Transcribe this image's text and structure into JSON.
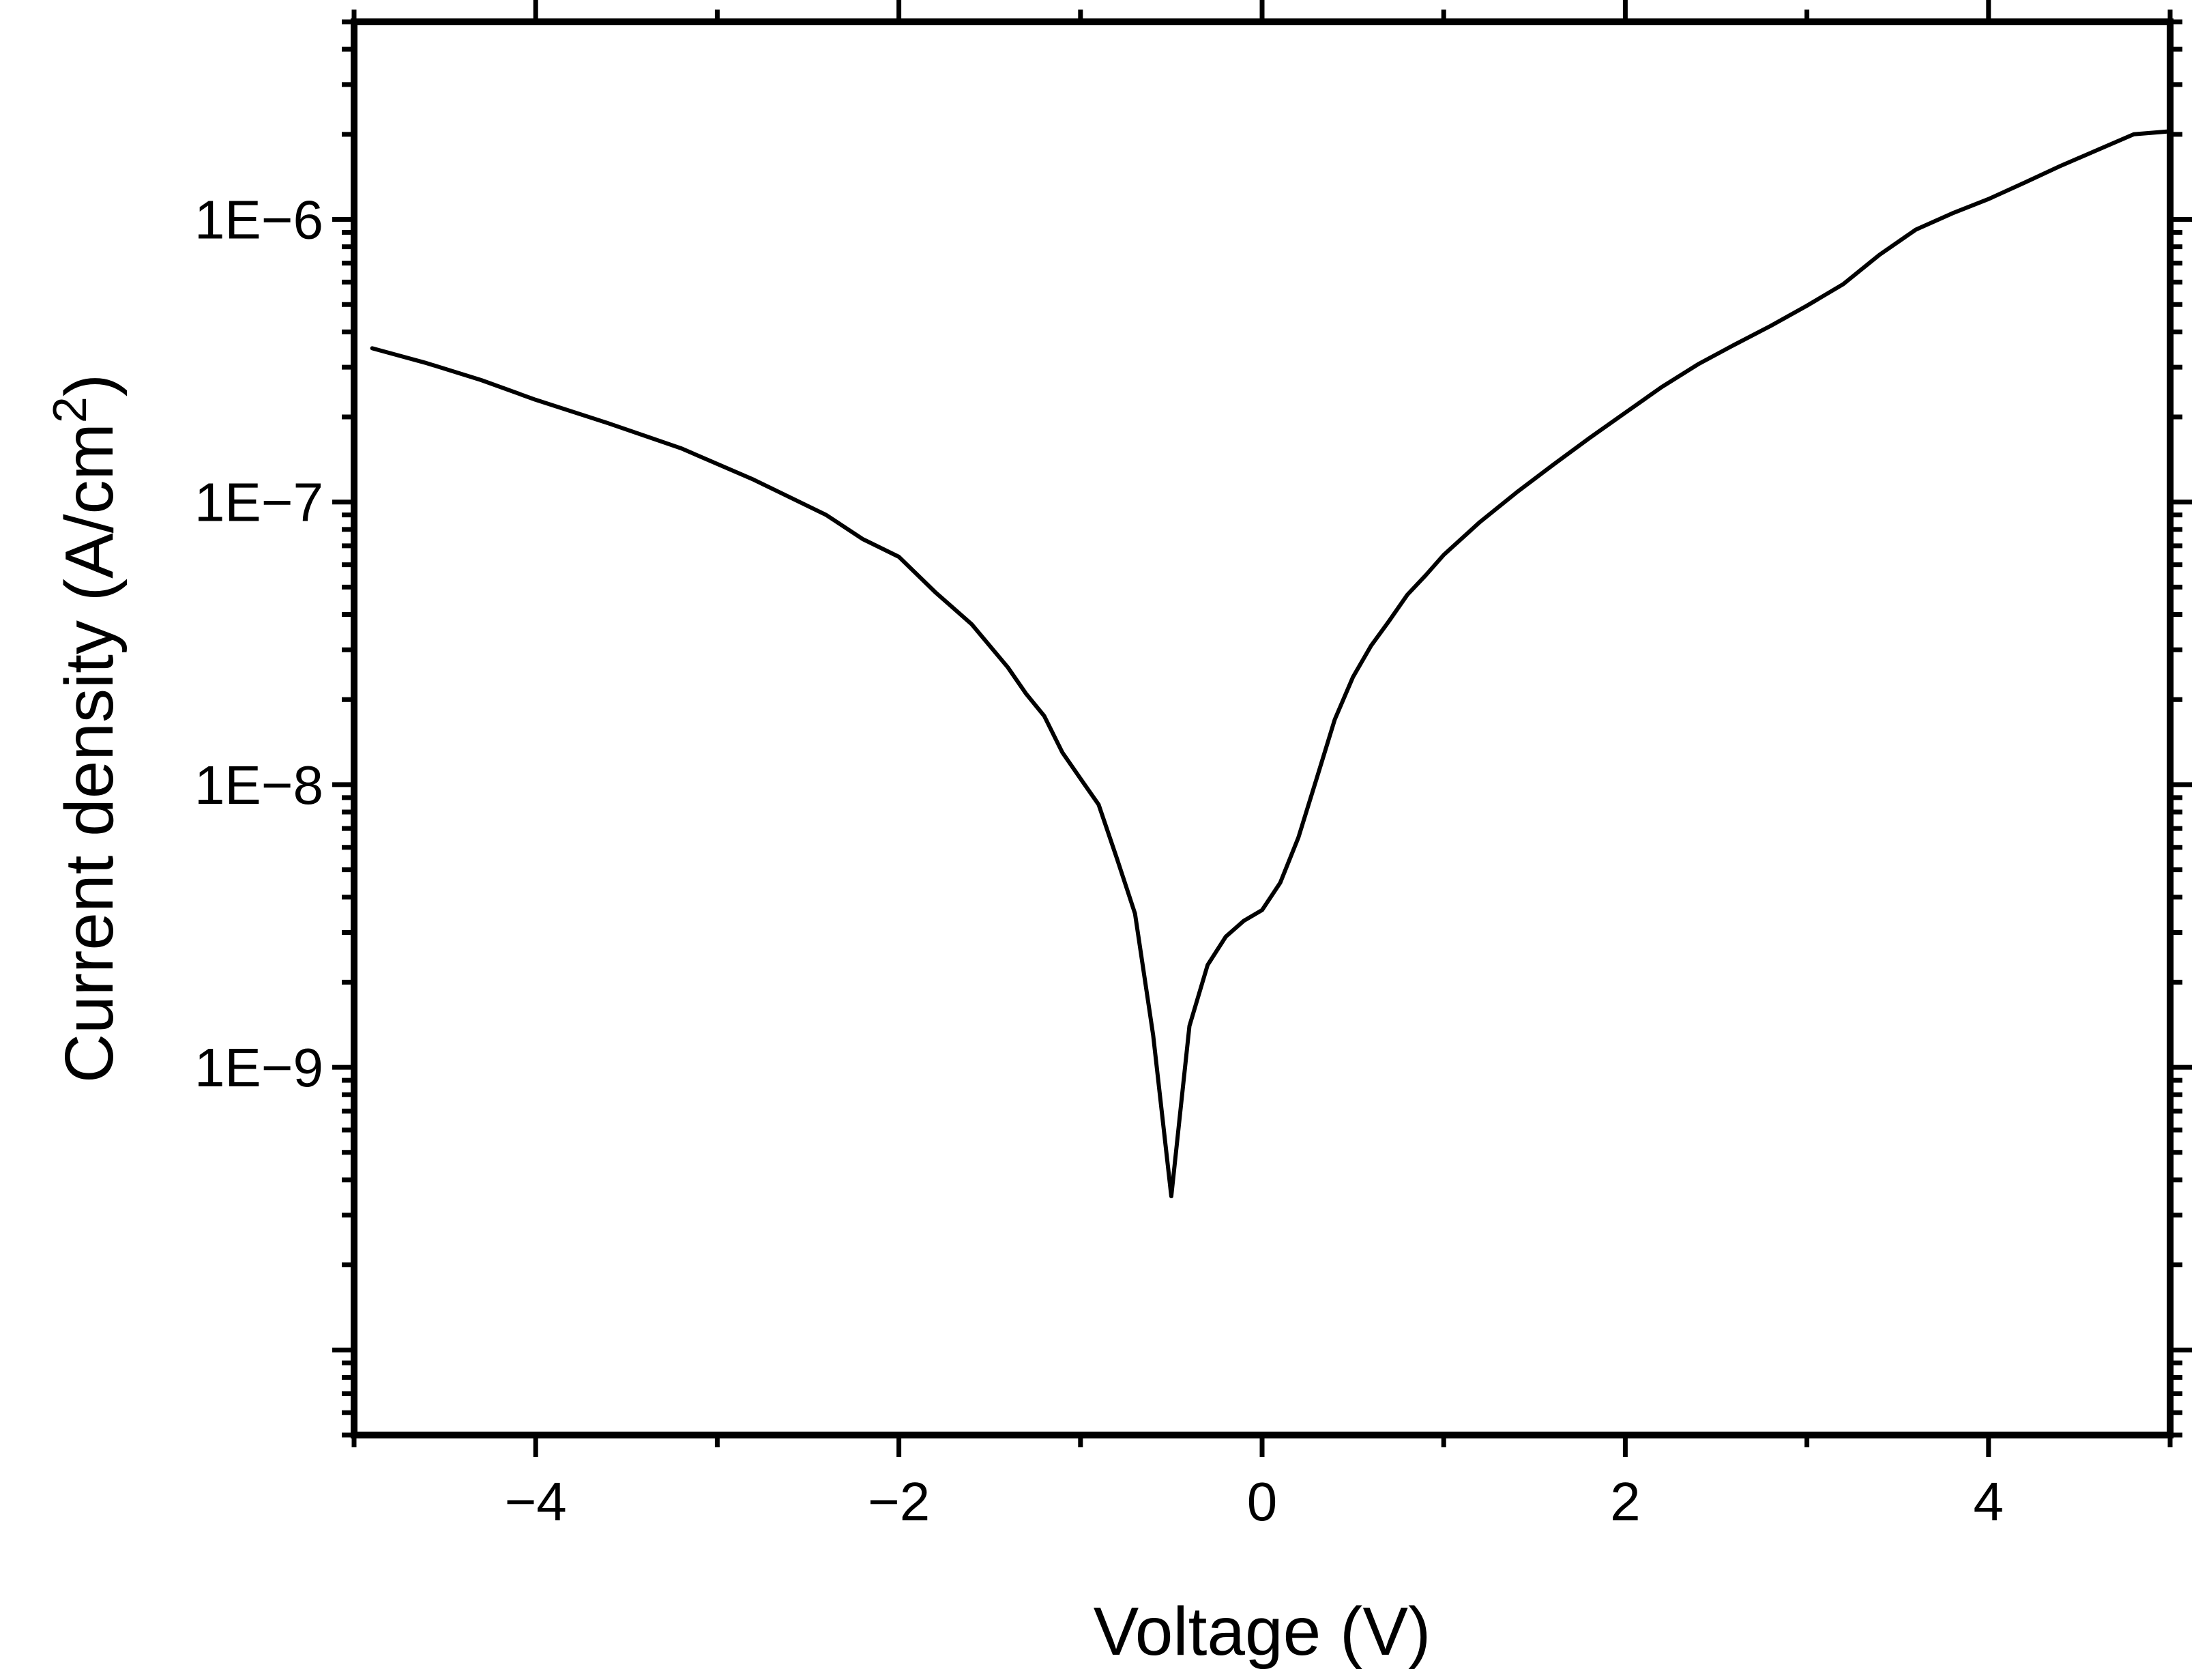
{
  "chart_data": {
    "type": "line",
    "title": "",
    "xlabel": "Voltage (V)",
    "ylabel_main": "Current density (A/cm",
    "ylabel_sup": "2",
    "ylabel_close": ")",
    "xscale": "linear",
    "yscale": "log",
    "xlim": [
      -5,
      5
    ],
    "ylim": [
      5e-11,
      5e-06
    ],
    "grid": false,
    "legend": "none",
    "colors": {
      "line": "#000000",
      "axes": "#000000",
      "background": "#ffffff"
    },
    "x_ticks": [
      {
        "value": -4,
        "label": "−4"
      },
      {
        "value": -2,
        "label": "−2"
      },
      {
        "value": 0,
        "label": "0"
      },
      {
        "value": 2,
        "label": "2"
      },
      {
        "value": 4,
        "label": "4"
      }
    ],
    "x_minor_ticks": [
      -5,
      -3,
      -1,
      1,
      3,
      5
    ],
    "y_ticks": [
      {
        "value": 1e-09,
        "label": "1E−9"
      },
      {
        "value": 1e-08,
        "label": "1E−8"
      },
      {
        "value": 1e-07,
        "label": "1E−7"
      },
      {
        "value": 1e-06,
        "label": "1E−6"
      }
    ],
    "series": [
      {
        "x": [
          -4.9,
          -4.6,
          -4.3,
          -4.0,
          -3.6,
          -3.2,
          -2.8,
          -2.4,
          -2.2,
          -2.0,
          -1.8,
          -1.6,
          -1.4,
          -1.3,
          -1.2,
          -1.1,
          -1.0,
          -0.9,
          -0.8,
          -0.7,
          -0.6,
          -0.5,
          -0.4,
          -0.3,
          -0.2,
          -0.1,
          0.0,
          0.1,
          0.2,
          0.3,
          0.4,
          0.5,
          0.6,
          0.7,
          0.8,
          0.9,
          1.0,
          1.2,
          1.4,
          1.6,
          1.8,
          2.0,
          2.2,
          2.4,
          2.6,
          2.8,
          3.0,
          3.2,
          3.4,
          3.6,
          3.8,
          4.0,
          4.2,
          4.4,
          4.6,
          4.8,
          5.0
        ],
        "y": [
          3.5e-07,
          3.1e-07,
          2.7e-07,
          2.3e-07,
          1.9e-07,
          1.55e-07,
          1.2e-07,
          9e-08,
          7.4e-08,
          6.4e-08,
          4.8e-08,
          3.7e-08,
          2.6e-08,
          2.1e-08,
          1.75e-08,
          1.3e-08,
          1.05e-08,
          8.5e-09,
          5.5e-09,
          3.5e-09,
          1.3e-09,
          3.5e-10,
          1.4e-09,
          2.3e-09,
          2.9e-09,
          3.3e-09,
          3.6e-09,
          4.5e-09,
          6.5e-09,
          1.05e-08,
          1.7e-08,
          2.4e-08,
          3.1e-08,
          3.8e-08,
          4.7e-08,
          5.5e-08,
          6.5e-08,
          8.5e-08,
          1.08e-07,
          1.35e-07,
          1.68e-07,
          2.07e-07,
          2.55e-07,
          3.07e-07,
          3.6e-07,
          4.2e-07,
          4.95e-07,
          5.9e-07,
          7.5e-07,
          9.2e-07,
          1.05e-06,
          1.18e-06,
          1.35e-06,
          1.55e-06,
          1.76e-06,
          2e-06,
          2.05e-06
        ]
      }
    ]
  }
}
